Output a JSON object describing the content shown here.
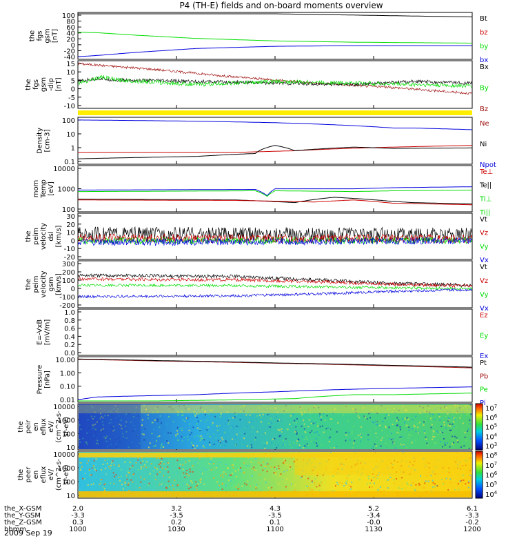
{
  "chart_data": {
    "type": "line",
    "title": "P4 (TH-E) fields and on-board moments overview",
    "date": "2009 Sep 19",
    "colors": {
      "black": "#000000",
      "red": "#cc0000",
      "darkred": "#a01010",
      "green": "#00dd00",
      "blue": "#0000dd",
      "yellow": "#ffee00"
    },
    "time": {
      "x_range_hhmm": [
        1000,
        1200
      ],
      "tick_labels": [
        "1000",
        "1030",
        "1100",
        "1130",
        "1200"
      ],
      "ephemeris": [
        {
          "name": "the_X-GSM",
          "values": [
            "2.0",
            "3.2",
            "4.3",
            "5.2",
            "6.1"
          ]
        },
        {
          "name": "the_Y-GSM",
          "values": [
            "-3.3",
            "-3.5",
            "-3.5",
            "-3.4",
            "-3.3"
          ]
        },
        {
          "name": "the_Z-GSM",
          "values": [
            "0.3",
            "0.2",
            "0.1",
            "-0.0",
            "-0.2"
          ]
        },
        {
          "name": "hhmm",
          "values": [
            "1000",
            "1030",
            "1100",
            "1130",
            "1200"
          ]
        }
      ]
    },
    "panels": [
      {
        "id": "fgs-gsm",
        "ylabel": [
          "the",
          "fgs",
          "gsm",
          "[nT]"
        ],
        "ylim": [
          -40,
          100
        ],
        "yticks": [
          "100",
          "80",
          "60",
          "40",
          "20",
          "0",
          "-20",
          "-40"
        ],
        "legend": [
          {
            "label": "Bt",
            "color": "black"
          },
          {
            "label": "bz",
            "color": "red"
          },
          {
            "label": "by",
            "color": "green"
          },
          {
            "label": "bx",
            "color": "blue"
          }
        ],
        "series": [
          {
            "name": "Bt",
            "color": "black",
            "x": [
              0,
              0.04,
              0.3,
              1
            ],
            "y": [
              112,
              108,
              104,
              90
            ]
          },
          {
            "name": "by",
            "color": "green",
            "x": [
              0,
              0.05,
              0.15,
              0.3,
              0.5,
              0.7,
              1
            ],
            "y": [
              42,
              40,
              32,
              22,
              14,
              10,
              7
            ]
          },
          {
            "name": "bx",
            "color": "blue",
            "x": [
              0,
              0.05,
              0.15,
              0.3,
              0.5,
              0.7,
              1
            ],
            "y": [
              -36,
              -32,
              -22,
              -10,
              -3,
              -1,
              -1
            ]
          }
        ]
      },
      {
        "id": "fgs-gsm-dip",
        "ylabel": [
          "the",
          "fgs",
          "gsm",
          "-dip",
          "[nT]"
        ],
        "ylim": [
          -15,
          15
        ],
        "yticks": [
          "15",
          "10",
          "5",
          "0",
          "-5",
          "-10"
        ],
        "legend": [
          {
            "label": "Bx",
            "color": "black"
          },
          {
            "label": "By",
            "color": "green"
          },
          {
            "label": "Bz",
            "color": "darkred"
          }
        ],
        "series": [
          {
            "name": "Bz",
            "color": "darkred",
            "x": [
              0,
              0.2,
              0.4,
              0.6,
              0.8,
              1
            ],
            "y": [
              14,
              10,
              5,
              1,
              -2,
              -6
            ],
            "noise": 0.8
          },
          {
            "name": "Bx",
            "color": "black",
            "x": [
              0,
              0.05,
              0.1,
              0.3,
              0.5,
              0.7,
              0.85,
              1
            ],
            "y": [
              2,
              4,
              3,
              2,
              1,
              0,
              2,
              1
            ],
            "noise": 1.2
          },
          {
            "name": "By",
            "color": "green",
            "x": [
              0,
              0.06,
              0.1,
              0.3,
              0.5,
              0.7,
              0.85,
              1
            ],
            "y": [
              1,
              5,
              3,
              0,
              2,
              1,
              0,
              -1
            ],
            "noise": 1.4
          }
        ]
      },
      {
        "id": "density",
        "ylabel": [
          "Density",
          "[cm-3]"
        ],
        "log": true,
        "ylim": [
          0.1,
          200
        ],
        "yticks": [
          "100",
          "10",
          "1",
          "0.1"
        ],
        "legend": [
          {
            "label": "Ne",
            "color": "darkred"
          },
          {
            "label": "Ni",
            "color": "black"
          },
          {
            "label": "Npot",
            "color": "blue"
          }
        ],
        "series": [
          {
            "name": "Npot",
            "color": "blue",
            "x": [
              0,
              0.3,
              0.5,
              0.7,
              0.8,
              0.85,
              1
            ],
            "y": [
              160,
              130,
              100,
              60,
              40,
              40,
              30
            ]
          },
          {
            "name": "Ne",
            "color": "red",
            "x": [
              0,
              0.4,
              0.55,
              0.65,
              0.8,
              1
            ],
            "y": [
              0.6,
              0.6,
              0.8,
              1.1,
              1.5,
              2
            ]
          },
          {
            "name": "Ni",
            "color": "black",
            "x": [
              0,
              0.3,
              0.45,
              0.5,
              0.55,
              0.7,
              0.8,
              1
            ],
            "y": [
              0.2,
              0.3,
              0.5,
              2,
              0.8,
              1.5,
              1.2,
              1.3
            ]
          }
        ]
      },
      {
        "id": "mom-temp",
        "ylabel": [
          "mom",
          "Temp",
          "[eV]"
        ],
        "log": true,
        "ylim": [
          50,
          10000
        ],
        "yticks": [
          "10000",
          "1000",
          "100"
        ],
        "legend": [
          {
            "label": "Te⊥",
            "color": "red"
          },
          {
            "label": "Te||",
            "color": "black"
          },
          {
            "label": "Ti⊥",
            "color": "green"
          },
          {
            "label": "Ti||",
            "color": "green"
          }
        ],
        "series": [
          {
            "name": "Ti||",
            "color": "blue",
            "x": [
              0,
              0.45,
              0.48,
              0.5,
              0.7,
              0.8,
              1
            ],
            "y": [
              600,
              650,
              300,
              700,
              700,
              800,
              900
            ]
          },
          {
            "name": "Ti⊥",
            "color": "green",
            "x": [
              0,
              0.45,
              0.48,
              0.5,
              0.7,
              0.8,
              1
            ],
            "y": [
              500,
              550,
              280,
              550,
              500,
              550,
              600
            ]
          },
          {
            "name": "Te||",
            "color": "black",
            "x": [
              0,
              0.4,
              0.55,
              0.65,
              0.8,
              0.85,
              1
            ],
            "y": [
              200,
              180,
              130,
              250,
              150,
              130,
              110
            ]
          },
          {
            "name": "Te⊥",
            "color": "red",
            "x": [
              0,
              0.4,
              0.6,
              0.7,
              0.8,
              1
            ],
            "y": [
              180,
              170,
              140,
              180,
              120,
              100
            ]
          }
        ]
      },
      {
        "id": "peim-velocity",
        "ylabel": [
          "the",
          "peim",
          "velocity",
          "dsl",
          "[km/s]"
        ],
        "ylim": [
          -20,
          30
        ],
        "yticks": [
          "30",
          "20",
          "10",
          "0",
          "-10",
          "-20"
        ],
        "legend": [
          {
            "label": "Vt",
            "color": "black"
          },
          {
            "label": "Vz",
            "color": "red"
          },
          {
            "label": "Vy",
            "color": "green"
          },
          {
            "label": "Vx",
            "color": "blue"
          }
        ],
        "series": [
          {
            "name": "Vt",
            "color": "black",
            "x": [
              0,
              1
            ],
            "y": [
              8,
              7
            ],
            "noise": 8
          },
          {
            "name": "Vz",
            "color": "red",
            "x": [
              0,
              1
            ],
            "y": [
              3,
              2
            ],
            "noise": 5
          },
          {
            "name": "Vy",
            "color": "green",
            "x": [
              0,
              1
            ],
            "y": [
              0,
              0
            ],
            "noise": 4
          },
          {
            "name": "Vx",
            "color": "blue",
            "x": [
              0,
              1
            ],
            "y": [
              -2,
              0
            ],
            "noise": 4
          }
        ]
      },
      {
        "id": "peim-velocity-gsm",
        "ylabel": [
          "the",
          "peim",
          "velocity",
          "gsm",
          "[km/s]"
        ],
        "ylim": [
          -200,
          300
        ],
        "yticks": [
          "300",
          "200",
          "100",
          "0",
          "-100",
          "-200"
        ],
        "legend": [
          {
            "label": "Vt",
            "color": "black"
          },
          {
            "label": "Vz",
            "color": "red"
          },
          {
            "label": "Vy",
            "color": "green"
          },
          {
            "label": "Vx",
            "color": "blue"
          }
        ],
        "series": [
          {
            "name": "Vt",
            "color": "black",
            "x": [
              0,
              0.4,
              0.6,
              0.8,
              1
            ],
            "y": [
              150,
              140,
              100,
              60,
              40
            ],
            "noise": 20
          },
          {
            "name": "Vz",
            "color": "red",
            "x": [
              0,
              0.4,
              0.6,
              0.8,
              1
            ],
            "y": [
              110,
              100,
              80,
              50,
              30
            ],
            "noise": 18
          },
          {
            "name": "Vy",
            "color": "green",
            "x": [
              0,
              0.4,
              0.6,
              0.8,
              1
            ],
            "y": [
              40,
              35,
              20,
              10,
              0
            ],
            "noise": 15
          },
          {
            "name": "Vx",
            "color": "blue",
            "x": [
              0,
              0.4,
              0.6,
              0.8,
              1
            ],
            "y": [
              -90,
              -80,
              -60,
              -30,
              -10
            ],
            "noise": 15
          }
        ]
      },
      {
        "id": "exb",
        "ylabel": [
          "E=-VxB",
          "[mV/m]"
        ],
        "ylim": [
          0,
          1
        ],
        "yticks": [
          "1.0",
          "0.8",
          "0.6",
          "0.4",
          "0.2",
          "0.0"
        ],
        "legend": [
          {
            "label": "Ez",
            "color": "red"
          },
          {
            "label": "Ey",
            "color": "green"
          },
          {
            "label": "Ex",
            "color": "blue"
          }
        ],
        "series": []
      },
      {
        "id": "pressure",
        "ylabel": [
          "Pressure",
          "[nPa]"
        ],
        "log": true,
        "ylim": [
          0.01,
          20
        ],
        "yticks": [
          "10.00",
          "1.00",
          "0.10",
          "0.01"
        ],
        "legend": [
          {
            "label": "Pt",
            "color": "black"
          },
          {
            "label": "Pb",
            "color": "darkred"
          },
          {
            "label": "Pe",
            "color": "green"
          },
          {
            "label": "Pi",
            "color": "blue"
          }
        ],
        "series": [
          {
            "name": "Pb",
            "color": "darkred",
            "x": [
              0,
              0.2,
              0.5,
              0.8,
              1
            ],
            "y": [
              16,
              12,
              8,
              5,
              3.5
            ]
          },
          {
            "name": "Pt",
            "color": "black",
            "x": [
              0,
              0.2,
              0.5,
              0.8,
              1
            ],
            "y": [
              17,
              13,
              8.5,
              5.5,
              4
            ]
          },
          {
            "name": "Pi",
            "color": "blue",
            "x": [
              0,
              0.05,
              0.3,
              0.5,
              0.7,
              1
            ],
            "y": [
              0.012,
              0.02,
              0.03,
              0.05,
              0.08,
              0.12
            ]
          },
          {
            "name": "Pe",
            "color": "green",
            "x": [
              0,
              0.2,
              0.4,
              0.55,
              0.7,
              0.8,
              1
            ],
            "y": [
              0.01,
              0.01,
              0.012,
              0.015,
              0.03,
              0.03,
              0.04
            ]
          }
        ]
      },
      {
        "id": "peir-eflux",
        "ylabel": [
          "the",
          "peir",
          "en",
          "eflux",
          "eV/",
          "(cm^2-s-",
          "sr-eV)"
        ],
        "type": "spectrogram",
        "yticks": [
          "10000",
          "1000",
          "100",
          "10"
        ],
        "colorbar": {
          "ticks": [
            "10^7",
            "10^6",
            "10^5",
            "10^4",
            "10^3"
          ]
        }
      },
      {
        "id": "peer-eflux",
        "ylabel": [
          "the",
          "peer",
          "en",
          "eflux",
          "eV/",
          "(cm^2-s-",
          "sr-eV)"
        ],
        "type": "spectrogram",
        "yticks": [
          "10000",
          "1000",
          "100",
          "10"
        ],
        "colorbar": {
          "ticks": [
            "10^8",
            "10^7",
            "10^6",
            "10^5",
            "10^4"
          ]
        }
      }
    ]
  }
}
